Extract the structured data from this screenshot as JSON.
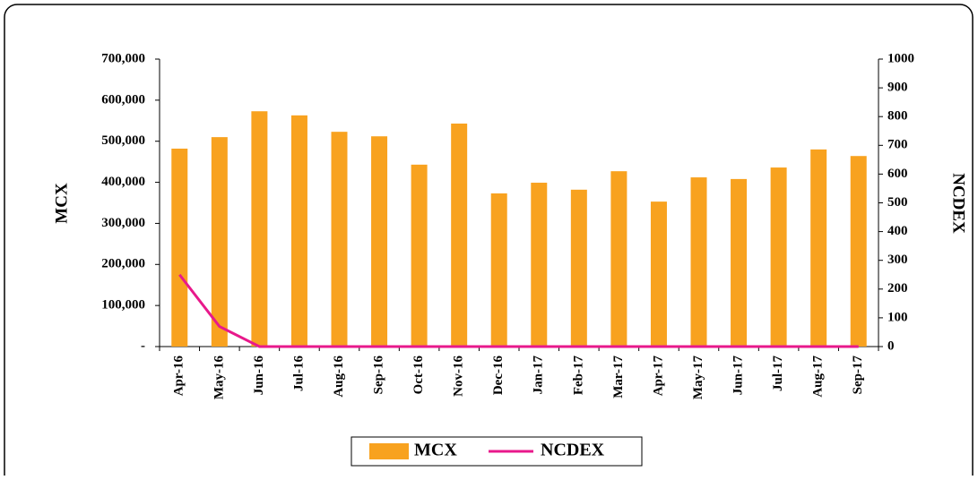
{
  "chart_data": {
    "type": "bar_line",
    "categories": [
      "Apr-16",
      "May-16",
      "Jun-16",
      "Jul-16",
      "Aug-16",
      "Sep-16",
      "Oct-16",
      "Nov-16",
      "Dec-16",
      "Jan-17",
      "Feb-17",
      "Mar-17",
      "Apr-17",
      "May-17",
      "Jun-17",
      "Jul-17",
      "Aug-17",
      "Sep-17"
    ],
    "series": [
      {
        "name": "MCX",
        "type": "bar",
        "color": "#f8a21f",
        "axis": "y",
        "values": [
          482000,
          510000,
          573000,
          563000,
          523000,
          512000,
          443000,
          543000,
          373000,
          399000,
          382000,
          427000,
          353000,
          412000,
          408000,
          436000,
          480000,
          464000
        ]
      },
      {
        "name": "NCDEX",
        "type": "line",
        "color": "#e8198b",
        "axis": "y2",
        "values": [
          250,
          70,
          0,
          0,
          0,
          0,
          0,
          0,
          0,
          0,
          0,
          0,
          0,
          0,
          0,
          0,
          0,
          0
        ]
      }
    ],
    "ylabel": "MCX",
    "y2label": "NCDEX",
    "ylim": [
      0,
      700000
    ],
    "yticks": [
      {
        "value": 0,
        "label": "-"
      },
      {
        "value": 100000,
        "label": "100,000"
      },
      {
        "value": 200000,
        "label": "200,000"
      },
      {
        "value": 300000,
        "label": "300,000"
      },
      {
        "value": 400000,
        "label": "400,000"
      },
      {
        "value": 500000,
        "label": "500,000"
      },
      {
        "value": 600000,
        "label": "600,000"
      },
      {
        "value": 700000,
        "label": "700,000"
      }
    ],
    "y2lim": [
      0,
      1000
    ],
    "y2ticks": [
      0,
      100,
      200,
      300,
      400,
      500,
      600,
      700,
      800,
      900,
      1000
    ],
    "legend": "bottom"
  }
}
